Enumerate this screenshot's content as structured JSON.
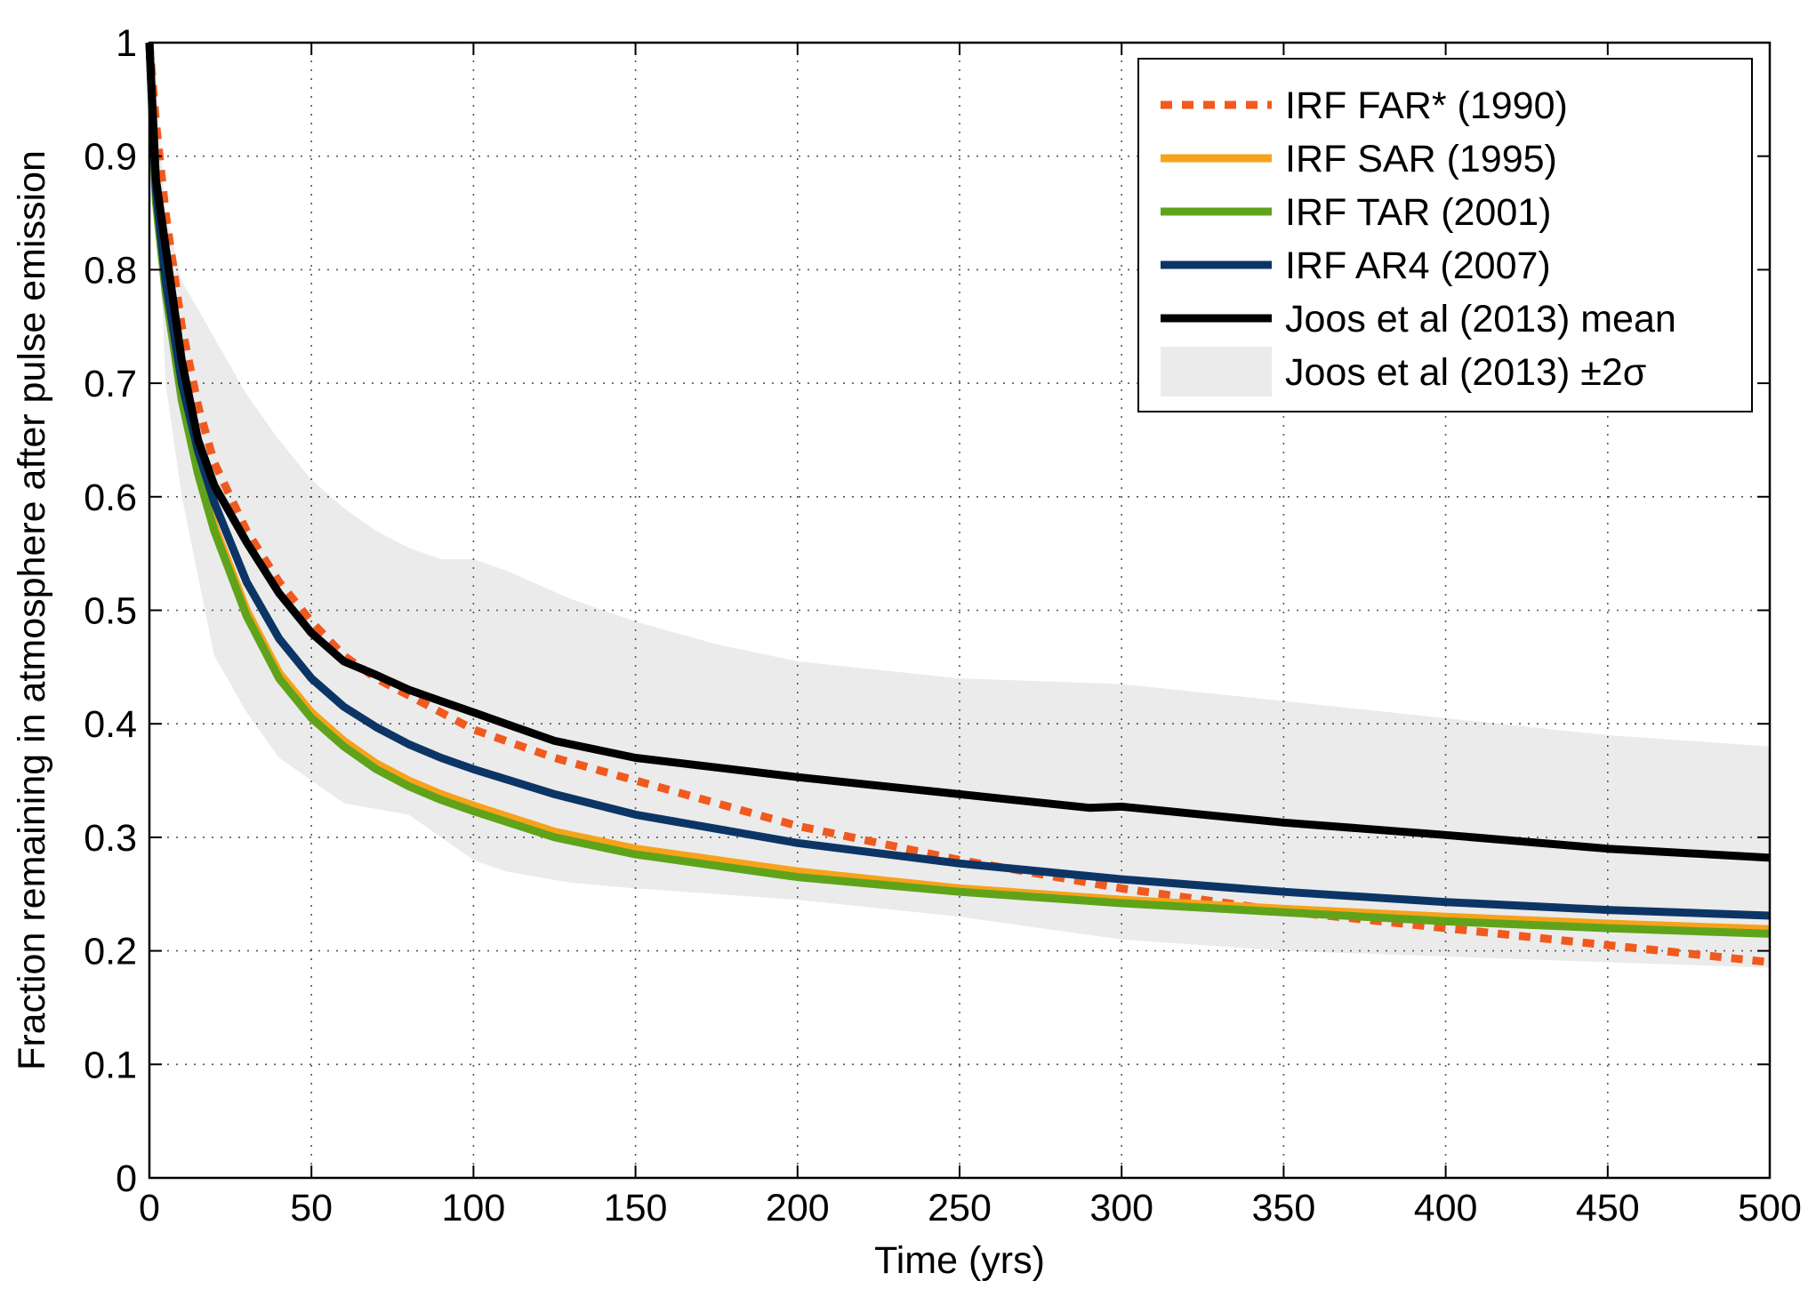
{
  "chart_data": {
    "type": "line",
    "xlabel": "Time (yrs)",
    "ylabel": "Fraction remaining in atmosphere after pulse emission",
    "xlim": [
      0,
      500
    ],
    "ylim": [
      0,
      1
    ],
    "xticks": [
      "0",
      "50",
      "100",
      "150",
      "200",
      "250",
      "300",
      "350",
      "400",
      "450",
      "500"
    ],
    "yticks": [
      "0",
      "0.1",
      "0.2",
      "0.3",
      "0.4",
      "0.5",
      "0.6",
      "0.7",
      "0.8",
      "0.9",
      "1"
    ],
    "xtick_values": [
      0,
      50,
      100,
      150,
      200,
      250,
      300,
      350,
      400,
      450,
      500
    ],
    "ytick_values": [
      0,
      0.1,
      0.2,
      0.3,
      0.4,
      0.5,
      0.6,
      0.7,
      0.8,
      0.9,
      1
    ],
    "grid": true,
    "legend_position": "top-right",
    "band": {
      "name": "Joos et al (2013) ±2σ",
      "color": "#ebebeb",
      "x": [
        0,
        2,
        5,
        10,
        20,
        30,
        40,
        50,
        60,
        70,
        80,
        90,
        100,
        110,
        130,
        150,
        175,
        200,
        250,
        300,
        350,
        400,
        450,
        500
      ],
      "upper": [
        1.0,
        0.97,
        0.85,
        0.79,
        0.74,
        0.69,
        0.65,
        0.615,
        0.59,
        0.57,
        0.555,
        0.545,
        0.545,
        0.535,
        0.51,
        0.49,
        0.47,
        0.455,
        0.44,
        0.435,
        0.42,
        0.405,
        0.39,
        0.38
      ],
      "lower": [
        1.0,
        0.9,
        0.7,
        0.6,
        0.46,
        0.41,
        0.37,
        0.35,
        0.33,
        0.325,
        0.32,
        0.3,
        0.28,
        0.27,
        0.26,
        0.255,
        0.25,
        0.245,
        0.23,
        0.21,
        0.2,
        0.195,
        0.19,
        0.185
      ]
    },
    "series": [
      {
        "name": "IRF FAR* (1990)",
        "color": "#f05a1f",
        "style": "dotted",
        "x": [
          0,
          2,
          5,
          10,
          15,
          20,
          30,
          40,
          50,
          60,
          70,
          80,
          90,
          100,
          125,
          150,
          200,
          250,
          300,
          350,
          400,
          450,
          500
        ],
        "values": [
          1.0,
          0.93,
          0.85,
          0.75,
          0.68,
          0.63,
          0.57,
          0.525,
          0.49,
          0.46,
          0.44,
          0.425,
          0.41,
          0.395,
          0.37,
          0.35,
          0.31,
          0.28,
          0.255,
          0.235,
          0.22,
          0.205,
          0.19
        ]
      },
      {
        "name": "IRF SAR (1995)",
        "color": "#f7a21b",
        "style": "solid",
        "x": [
          0,
          2,
          5,
          10,
          15,
          20,
          30,
          40,
          50,
          60,
          70,
          80,
          90,
          100,
          125,
          150,
          200,
          250,
          300,
          350,
          400,
          450,
          500
        ],
        "values": [
          1.0,
          0.87,
          0.79,
          0.69,
          0.625,
          0.575,
          0.5,
          0.445,
          0.41,
          0.385,
          0.365,
          0.35,
          0.338,
          0.328,
          0.305,
          0.29,
          0.27,
          0.255,
          0.245,
          0.237,
          0.23,
          0.224,
          0.219
        ]
      },
      {
        "name": "IRF TAR (2001)",
        "color": "#5fa31b",
        "style": "solid",
        "x": [
          0,
          2,
          5,
          10,
          15,
          20,
          30,
          40,
          50,
          60,
          70,
          80,
          90,
          100,
          125,
          150,
          200,
          250,
          300,
          350,
          400,
          450,
          500
        ],
        "values": [
          1.0,
          0.86,
          0.78,
          0.685,
          0.62,
          0.57,
          0.495,
          0.44,
          0.405,
          0.38,
          0.36,
          0.345,
          0.333,
          0.323,
          0.3,
          0.285,
          0.265,
          0.252,
          0.242,
          0.234,
          0.226,
          0.22,
          0.215
        ]
      },
      {
        "name": "IRF AR4 (2007)",
        "color": "#0c3566",
        "style": "solid",
        "x": [
          0,
          2,
          5,
          10,
          15,
          20,
          30,
          40,
          50,
          60,
          70,
          80,
          90,
          100,
          125,
          150,
          200,
          250,
          300,
          350,
          400,
          450,
          500
        ],
        "values": [
          1.0,
          0.87,
          0.79,
          0.7,
          0.64,
          0.595,
          0.525,
          0.475,
          0.44,
          0.415,
          0.397,
          0.382,
          0.37,
          0.36,
          0.338,
          0.32,
          0.295,
          0.277,
          0.263,
          0.252,
          0.243,
          0.236,
          0.231
        ]
      },
      {
        "name": "Joos et al (2013) mean",
        "color": "#000000",
        "style": "solid",
        "x": [
          0,
          2,
          5,
          10,
          15,
          20,
          30,
          40,
          50,
          60,
          70,
          80,
          90,
          100,
          110,
          125,
          150,
          200,
          250,
          290,
          300,
          350,
          400,
          450,
          500
        ],
        "values": [
          1.0,
          0.88,
          0.82,
          0.72,
          0.65,
          0.61,
          0.56,
          0.515,
          0.48,
          0.455,
          0.443,
          0.43,
          0.42,
          0.41,
          0.4,
          0.385,
          0.37,
          0.353,
          0.338,
          0.326,
          0.327,
          0.313,
          0.302,
          0.29,
          0.282
        ]
      }
    ]
  }
}
